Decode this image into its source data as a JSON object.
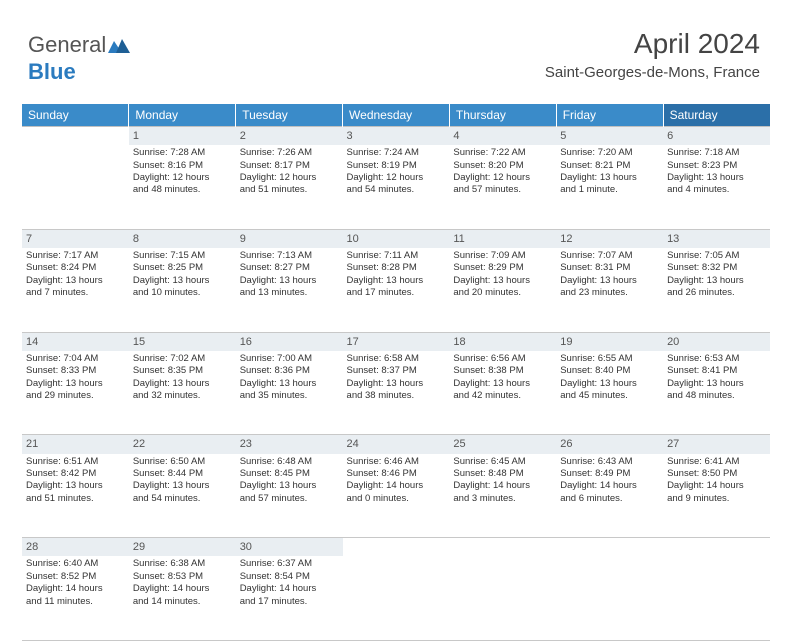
{
  "logo": {
    "text_general": "General",
    "text_blue": "Blue"
  },
  "header": {
    "month": "April 2024",
    "location": "Saint-Georges-de-Mons, France"
  },
  "colors": {
    "header_bg": "#3a8bc9",
    "header_sat_bg": "#2b6fa8",
    "daynum_bg": "#e9eef2",
    "border": "#c8c8c8",
    "text": "#333333"
  },
  "weekdays": [
    "Sunday",
    "Monday",
    "Tuesday",
    "Wednesday",
    "Thursday",
    "Friday",
    "Saturday"
  ],
  "weeks": [
    {
      "nums": [
        "",
        "1",
        "2",
        "3",
        "4",
        "5",
        "6"
      ],
      "cells": [
        {
          "sunrise": "",
          "sunset": "",
          "daylight1": "",
          "daylight2": ""
        },
        {
          "sunrise": "Sunrise: 7:28 AM",
          "sunset": "Sunset: 8:16 PM",
          "daylight1": "Daylight: 12 hours",
          "daylight2": "and 48 minutes."
        },
        {
          "sunrise": "Sunrise: 7:26 AM",
          "sunset": "Sunset: 8:17 PM",
          "daylight1": "Daylight: 12 hours",
          "daylight2": "and 51 minutes."
        },
        {
          "sunrise": "Sunrise: 7:24 AM",
          "sunset": "Sunset: 8:19 PM",
          "daylight1": "Daylight: 12 hours",
          "daylight2": "and 54 minutes."
        },
        {
          "sunrise": "Sunrise: 7:22 AM",
          "sunset": "Sunset: 8:20 PM",
          "daylight1": "Daylight: 12 hours",
          "daylight2": "and 57 minutes."
        },
        {
          "sunrise": "Sunrise: 7:20 AM",
          "sunset": "Sunset: 8:21 PM",
          "daylight1": "Daylight: 13 hours",
          "daylight2": "and 1 minute."
        },
        {
          "sunrise": "Sunrise: 7:18 AM",
          "sunset": "Sunset: 8:23 PM",
          "daylight1": "Daylight: 13 hours",
          "daylight2": "and 4 minutes."
        }
      ]
    },
    {
      "nums": [
        "7",
        "8",
        "9",
        "10",
        "11",
        "12",
        "13"
      ],
      "cells": [
        {
          "sunrise": "Sunrise: 7:17 AM",
          "sunset": "Sunset: 8:24 PM",
          "daylight1": "Daylight: 13 hours",
          "daylight2": "and 7 minutes."
        },
        {
          "sunrise": "Sunrise: 7:15 AM",
          "sunset": "Sunset: 8:25 PM",
          "daylight1": "Daylight: 13 hours",
          "daylight2": "and 10 minutes."
        },
        {
          "sunrise": "Sunrise: 7:13 AM",
          "sunset": "Sunset: 8:27 PM",
          "daylight1": "Daylight: 13 hours",
          "daylight2": "and 13 minutes."
        },
        {
          "sunrise": "Sunrise: 7:11 AM",
          "sunset": "Sunset: 8:28 PM",
          "daylight1": "Daylight: 13 hours",
          "daylight2": "and 17 minutes."
        },
        {
          "sunrise": "Sunrise: 7:09 AM",
          "sunset": "Sunset: 8:29 PM",
          "daylight1": "Daylight: 13 hours",
          "daylight2": "and 20 minutes."
        },
        {
          "sunrise": "Sunrise: 7:07 AM",
          "sunset": "Sunset: 8:31 PM",
          "daylight1": "Daylight: 13 hours",
          "daylight2": "and 23 minutes."
        },
        {
          "sunrise": "Sunrise: 7:05 AM",
          "sunset": "Sunset: 8:32 PM",
          "daylight1": "Daylight: 13 hours",
          "daylight2": "and 26 minutes."
        }
      ]
    },
    {
      "nums": [
        "14",
        "15",
        "16",
        "17",
        "18",
        "19",
        "20"
      ],
      "cells": [
        {
          "sunrise": "Sunrise: 7:04 AM",
          "sunset": "Sunset: 8:33 PM",
          "daylight1": "Daylight: 13 hours",
          "daylight2": "and 29 minutes."
        },
        {
          "sunrise": "Sunrise: 7:02 AM",
          "sunset": "Sunset: 8:35 PM",
          "daylight1": "Daylight: 13 hours",
          "daylight2": "and 32 minutes."
        },
        {
          "sunrise": "Sunrise: 7:00 AM",
          "sunset": "Sunset: 8:36 PM",
          "daylight1": "Daylight: 13 hours",
          "daylight2": "and 35 minutes."
        },
        {
          "sunrise": "Sunrise: 6:58 AM",
          "sunset": "Sunset: 8:37 PM",
          "daylight1": "Daylight: 13 hours",
          "daylight2": "and 38 minutes."
        },
        {
          "sunrise": "Sunrise: 6:56 AM",
          "sunset": "Sunset: 8:38 PM",
          "daylight1": "Daylight: 13 hours",
          "daylight2": "and 42 minutes."
        },
        {
          "sunrise": "Sunrise: 6:55 AM",
          "sunset": "Sunset: 8:40 PM",
          "daylight1": "Daylight: 13 hours",
          "daylight2": "and 45 minutes."
        },
        {
          "sunrise": "Sunrise: 6:53 AM",
          "sunset": "Sunset: 8:41 PM",
          "daylight1": "Daylight: 13 hours",
          "daylight2": "and 48 minutes."
        }
      ]
    },
    {
      "nums": [
        "21",
        "22",
        "23",
        "24",
        "25",
        "26",
        "27"
      ],
      "cells": [
        {
          "sunrise": "Sunrise: 6:51 AM",
          "sunset": "Sunset: 8:42 PM",
          "daylight1": "Daylight: 13 hours",
          "daylight2": "and 51 minutes."
        },
        {
          "sunrise": "Sunrise: 6:50 AM",
          "sunset": "Sunset: 8:44 PM",
          "daylight1": "Daylight: 13 hours",
          "daylight2": "and 54 minutes."
        },
        {
          "sunrise": "Sunrise: 6:48 AM",
          "sunset": "Sunset: 8:45 PM",
          "daylight1": "Daylight: 13 hours",
          "daylight2": "and 57 minutes."
        },
        {
          "sunrise": "Sunrise: 6:46 AM",
          "sunset": "Sunset: 8:46 PM",
          "daylight1": "Daylight: 14 hours",
          "daylight2": "and 0 minutes."
        },
        {
          "sunrise": "Sunrise: 6:45 AM",
          "sunset": "Sunset: 8:48 PM",
          "daylight1": "Daylight: 14 hours",
          "daylight2": "and 3 minutes."
        },
        {
          "sunrise": "Sunrise: 6:43 AM",
          "sunset": "Sunset: 8:49 PM",
          "daylight1": "Daylight: 14 hours",
          "daylight2": "and 6 minutes."
        },
        {
          "sunrise": "Sunrise: 6:41 AM",
          "sunset": "Sunset: 8:50 PM",
          "daylight1": "Daylight: 14 hours",
          "daylight2": "and 9 minutes."
        }
      ]
    },
    {
      "nums": [
        "28",
        "29",
        "30",
        "",
        "",
        "",
        ""
      ],
      "cells": [
        {
          "sunrise": "Sunrise: 6:40 AM",
          "sunset": "Sunset: 8:52 PM",
          "daylight1": "Daylight: 14 hours",
          "daylight2": "and 11 minutes."
        },
        {
          "sunrise": "Sunrise: 6:38 AM",
          "sunset": "Sunset: 8:53 PM",
          "daylight1": "Daylight: 14 hours",
          "daylight2": "and 14 minutes."
        },
        {
          "sunrise": "Sunrise: 6:37 AM",
          "sunset": "Sunset: 8:54 PM",
          "daylight1": "Daylight: 14 hours",
          "daylight2": "and 17 minutes."
        },
        {
          "sunrise": "",
          "sunset": "",
          "daylight1": "",
          "daylight2": ""
        },
        {
          "sunrise": "",
          "sunset": "",
          "daylight1": "",
          "daylight2": ""
        },
        {
          "sunrise": "",
          "sunset": "",
          "daylight1": "",
          "daylight2": ""
        },
        {
          "sunrise": "",
          "sunset": "",
          "daylight1": "",
          "daylight2": ""
        }
      ]
    }
  ]
}
